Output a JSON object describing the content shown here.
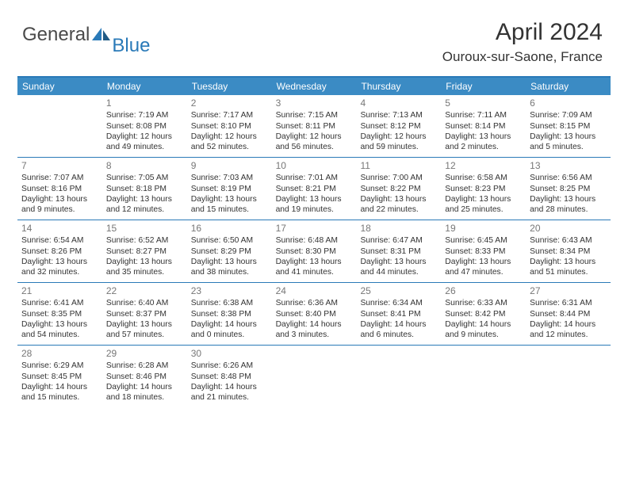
{
  "brand": {
    "part1": "General",
    "part2": "Blue"
  },
  "title": "April 2024",
  "location": "Ouroux-sur-Saone, France",
  "colors": {
    "header_bg": "#3b8bc4",
    "header_text": "#ffffff",
    "border": "#2a7ab8",
    "day_num": "#777777",
    "body_text": "#333333",
    "brand_blue": "#2a7ab8",
    "brand_gray": "#4a4a4a"
  },
  "day_labels": [
    "Sunday",
    "Monday",
    "Tuesday",
    "Wednesday",
    "Thursday",
    "Friday",
    "Saturday"
  ],
  "weeks": [
    [
      {
        "empty": true
      },
      {
        "n": "1",
        "sunrise": "7:19 AM",
        "sunset": "8:08 PM",
        "dl1": "Daylight: 12 hours",
        "dl2": "and 49 minutes."
      },
      {
        "n": "2",
        "sunrise": "7:17 AM",
        "sunset": "8:10 PM",
        "dl1": "Daylight: 12 hours",
        "dl2": "and 52 minutes."
      },
      {
        "n": "3",
        "sunrise": "7:15 AM",
        "sunset": "8:11 PM",
        "dl1": "Daylight: 12 hours",
        "dl2": "and 56 minutes."
      },
      {
        "n": "4",
        "sunrise": "7:13 AM",
        "sunset": "8:12 PM",
        "dl1": "Daylight: 12 hours",
        "dl2": "and 59 minutes."
      },
      {
        "n": "5",
        "sunrise": "7:11 AM",
        "sunset": "8:14 PM",
        "dl1": "Daylight: 13 hours",
        "dl2": "and 2 minutes."
      },
      {
        "n": "6",
        "sunrise": "7:09 AM",
        "sunset": "8:15 PM",
        "dl1": "Daylight: 13 hours",
        "dl2": "and 5 minutes."
      }
    ],
    [
      {
        "n": "7",
        "sunrise": "7:07 AM",
        "sunset": "8:16 PM",
        "dl1": "Daylight: 13 hours",
        "dl2": "and 9 minutes."
      },
      {
        "n": "8",
        "sunrise": "7:05 AM",
        "sunset": "8:18 PM",
        "dl1": "Daylight: 13 hours",
        "dl2": "and 12 minutes."
      },
      {
        "n": "9",
        "sunrise": "7:03 AM",
        "sunset": "8:19 PM",
        "dl1": "Daylight: 13 hours",
        "dl2": "and 15 minutes."
      },
      {
        "n": "10",
        "sunrise": "7:01 AM",
        "sunset": "8:21 PM",
        "dl1": "Daylight: 13 hours",
        "dl2": "and 19 minutes."
      },
      {
        "n": "11",
        "sunrise": "7:00 AM",
        "sunset": "8:22 PM",
        "dl1": "Daylight: 13 hours",
        "dl2": "and 22 minutes."
      },
      {
        "n": "12",
        "sunrise": "6:58 AM",
        "sunset": "8:23 PM",
        "dl1": "Daylight: 13 hours",
        "dl2": "and 25 minutes."
      },
      {
        "n": "13",
        "sunrise": "6:56 AM",
        "sunset": "8:25 PM",
        "dl1": "Daylight: 13 hours",
        "dl2": "and 28 minutes."
      }
    ],
    [
      {
        "n": "14",
        "sunrise": "6:54 AM",
        "sunset": "8:26 PM",
        "dl1": "Daylight: 13 hours",
        "dl2": "and 32 minutes."
      },
      {
        "n": "15",
        "sunrise": "6:52 AM",
        "sunset": "8:27 PM",
        "dl1": "Daylight: 13 hours",
        "dl2": "and 35 minutes."
      },
      {
        "n": "16",
        "sunrise": "6:50 AM",
        "sunset": "8:29 PM",
        "dl1": "Daylight: 13 hours",
        "dl2": "and 38 minutes."
      },
      {
        "n": "17",
        "sunrise": "6:48 AM",
        "sunset": "8:30 PM",
        "dl1": "Daylight: 13 hours",
        "dl2": "and 41 minutes."
      },
      {
        "n": "18",
        "sunrise": "6:47 AM",
        "sunset": "8:31 PM",
        "dl1": "Daylight: 13 hours",
        "dl2": "and 44 minutes."
      },
      {
        "n": "19",
        "sunrise": "6:45 AM",
        "sunset": "8:33 PM",
        "dl1": "Daylight: 13 hours",
        "dl2": "and 47 minutes."
      },
      {
        "n": "20",
        "sunrise": "6:43 AM",
        "sunset": "8:34 PM",
        "dl1": "Daylight: 13 hours",
        "dl2": "and 51 minutes."
      }
    ],
    [
      {
        "n": "21",
        "sunrise": "6:41 AM",
        "sunset": "8:35 PM",
        "dl1": "Daylight: 13 hours",
        "dl2": "and 54 minutes."
      },
      {
        "n": "22",
        "sunrise": "6:40 AM",
        "sunset": "8:37 PM",
        "dl1": "Daylight: 13 hours",
        "dl2": "and 57 minutes."
      },
      {
        "n": "23",
        "sunrise": "6:38 AM",
        "sunset": "8:38 PM",
        "dl1": "Daylight: 14 hours",
        "dl2": "and 0 minutes."
      },
      {
        "n": "24",
        "sunrise": "6:36 AM",
        "sunset": "8:40 PM",
        "dl1": "Daylight: 14 hours",
        "dl2": "and 3 minutes."
      },
      {
        "n": "25",
        "sunrise": "6:34 AM",
        "sunset": "8:41 PM",
        "dl1": "Daylight: 14 hours",
        "dl2": "and 6 minutes."
      },
      {
        "n": "26",
        "sunrise": "6:33 AM",
        "sunset": "8:42 PM",
        "dl1": "Daylight: 14 hours",
        "dl2": "and 9 minutes."
      },
      {
        "n": "27",
        "sunrise": "6:31 AM",
        "sunset": "8:44 PM",
        "dl1": "Daylight: 14 hours",
        "dl2": "and 12 minutes."
      }
    ],
    [
      {
        "n": "28",
        "sunrise": "6:29 AM",
        "sunset": "8:45 PM",
        "dl1": "Daylight: 14 hours",
        "dl2": "and 15 minutes."
      },
      {
        "n": "29",
        "sunrise": "6:28 AM",
        "sunset": "8:46 PM",
        "dl1": "Daylight: 14 hours",
        "dl2": "and 18 minutes."
      },
      {
        "n": "30",
        "sunrise": "6:26 AM",
        "sunset": "8:48 PM",
        "dl1": "Daylight: 14 hours",
        "dl2": "and 21 minutes."
      },
      {
        "empty": true
      },
      {
        "empty": true
      },
      {
        "empty": true
      },
      {
        "empty": true
      }
    ]
  ]
}
